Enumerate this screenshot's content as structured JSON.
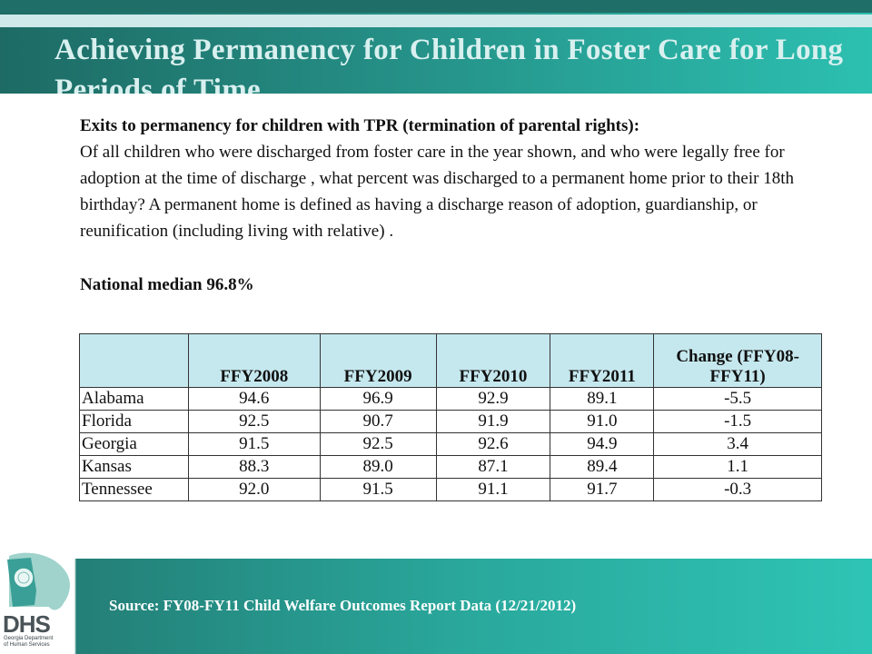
{
  "header": {
    "title": "Achieving Permanency for Children in Foster Care for Long Periods of Time"
  },
  "content": {
    "heading": "Exits to permanency for children with TPR (termination of parental rights):",
    "body": "Of all children who were discharged from foster care in the year shown, and who were legally free for adoption at the time of discharge , what percent was discharged to a permanent home prior to their 18th birthday? A permanent home is defined as having a discharge reason of adoption, guardianship, or reunification (including living with relative) .",
    "median": "National median 96.8%"
  },
  "table": {
    "headers": [
      "",
      "FFY2008",
      "FFY2009",
      "FFY2010",
      "FFY2011",
      "Change (FFY08-FFY11)"
    ],
    "rows": [
      [
        "Alabama",
        "94.6",
        "96.9",
        "92.9",
        "89.1",
        "-5.5"
      ],
      [
        "Florida",
        "92.5",
        "90.7",
        "91.9",
        "91.0",
        "-1.5"
      ],
      [
        "Georgia",
        "91.5",
        "92.5",
        "92.6",
        "94.9",
        "3.4"
      ],
      [
        "Kansas",
        "88.3",
        "89.0",
        "87.1",
        "89.4",
        "1.1"
      ],
      [
        "Tennessee",
        "92.0",
        "91.5",
        "91.1",
        "91.7",
        "-0.3"
      ]
    ]
  },
  "footer": {
    "source": "Source:  FY08-FY11 Child Welfare Outcomes Report Data (12/21/2012)"
  },
  "logo": {
    "name": "DHS",
    "subtitle_line1": "Georgia Department",
    "subtitle_line2": "of Human Services"
  },
  "colors": {
    "header_teal": "#258f86",
    "table_header_bg": "#c5e8ee",
    "footer_teal": "#2aa99d"
  }
}
